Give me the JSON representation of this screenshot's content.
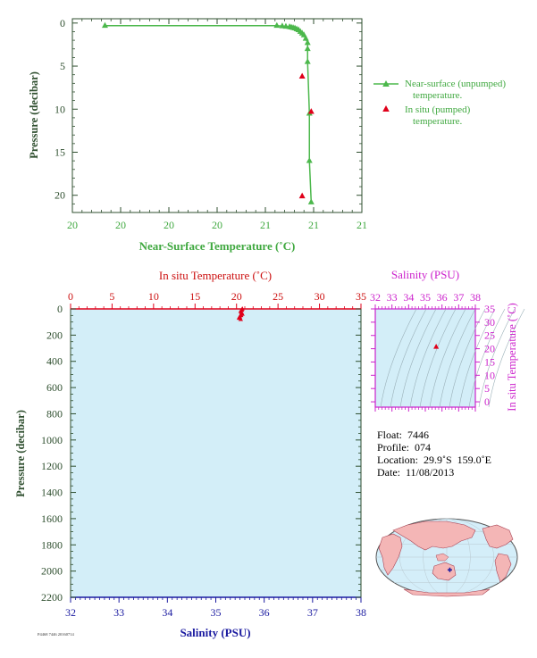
{
  "colors": {
    "green": "#4cb84c",
    "green_text": "#3fa83f",
    "dark_axis": "#2f4f2f",
    "red": "#e0001a",
    "red_text": "#cc1010",
    "magenta": "#cc22cc",
    "blue": "#1a1aa0",
    "profile_bg": "#d3eef8",
    "ocean": "#d4eef9",
    "land": "#f4b6b6"
  },
  "chart_data": [
    {
      "id": "near_surface",
      "type": "line",
      "xlabel": "Near-Surface Temperature (˚C)",
      "ylabel": "Pressure (decibar)",
      "xlim": [
        19.4,
        21.0
      ],
      "ylim": [
        22.0,
        -0.5
      ],
      "x_tick_labels": [
        "20",
        "20",
        "20",
        "20",
        "21",
        "21",
        "21"
      ],
      "y_ticks": [
        0,
        5,
        10,
        15,
        20
      ],
      "series": [
        {
          "name": "Near-surface (unpumped) temperature.",
          "marker": "triangle",
          "color": "#4cb84c",
          "x": [
            19.58,
            20.53,
            20.56,
            20.58,
            20.6,
            20.61,
            20.62,
            20.63,
            20.64,
            20.65,
            20.66,
            20.67,
            20.68,
            20.69,
            20.7,
            20.7,
            20.7,
            20.71,
            20.71,
            20.72
          ],
          "y": [
            0.3,
            0.3,
            0.35,
            0.4,
            0.45,
            0.5,
            0.55,
            0.6,
            0.7,
            0.8,
            1.0,
            1.2,
            1.4,
            1.8,
            2.3,
            3.0,
            4.5,
            10.5,
            16.0,
            20.8
          ]
        },
        {
          "name": "In situ (pumped) temperature.",
          "marker": "triangle",
          "color": "#e0001a",
          "x": [
            20.67,
            20.72,
            20.67
          ],
          "y": [
            6.2,
            10.3,
            20.1
          ]
        }
      ]
    },
    {
      "id": "profile",
      "type": "line",
      "top_xlabel": "In situ Temperature (˚C)",
      "bottom_xlabel": "Salinity (PSU)",
      "ylabel": "Pressure (decibar)",
      "top_xlim": [
        0,
        35
      ],
      "bottom_xlim": [
        32,
        38
      ],
      "ylim": [
        2200,
        0
      ],
      "top_ticks": [
        0,
        5,
        10,
        15,
        20,
        25,
        30,
        35
      ],
      "bottom_ticks": [
        32,
        33,
        34,
        35,
        36,
        37,
        38
      ],
      "y_ticks": [
        0,
        200,
        400,
        600,
        800,
        1000,
        1200,
        1400,
        1600,
        1800,
        2000,
        2200
      ],
      "series": [
        {
          "name": "temperature",
          "color": "#e0001a",
          "x": [
            20.7,
            20.65,
            20.5,
            20.6,
            20.7,
            20.55,
            20.4,
            20.3,
            20.5
          ],
          "y": [
            0,
            10,
            20,
            30,
            40,
            50,
            60,
            70,
            80
          ]
        }
      ]
    },
    {
      "id": "ts",
      "type": "scatter",
      "top_xlabel": "Salinity (PSU)",
      "right_ylabel": "In situ Temperature (˚C)",
      "xlim": [
        32,
        38
      ],
      "ylim": [
        -2,
        35
      ],
      "x_ticks": [
        32,
        33,
        34,
        35,
        36,
        37,
        38
      ],
      "y_ticks": [
        0,
        5,
        10,
        15,
        20,
        25,
        30,
        35
      ],
      "points": [
        {
          "x": 35.65,
          "y": 20.7
        }
      ]
    }
  ],
  "info": {
    "float": "Float:  7446",
    "profile": "Profile:  074",
    "location": "Location:  29.9˚S  159.0˚E",
    "date": "Date:  11/08/2013"
  },
  "map": {
    "float_lat": -29.9,
    "float_lon": 159.0
  },
  "footer": {
    "tiny": "P4468 7446 20160714"
  }
}
